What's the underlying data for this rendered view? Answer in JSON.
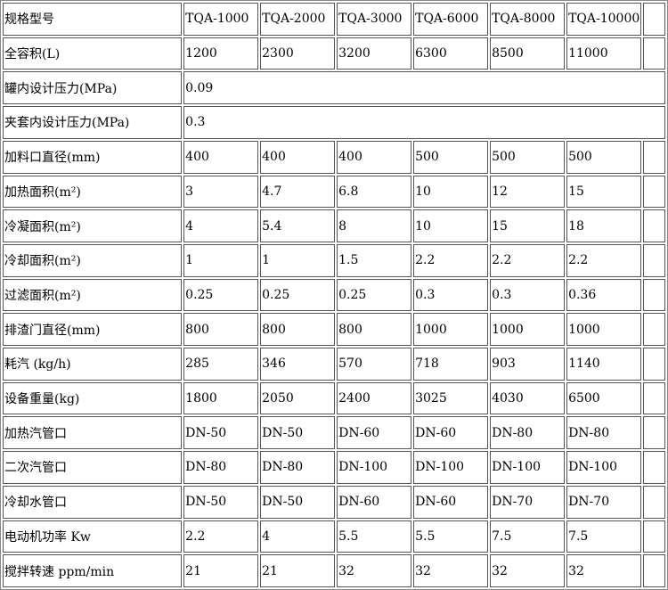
{
  "table": {
    "rows": [
      {
        "label": "规格型号",
        "cells": [
          "TQA-1000",
          "TQA-2000",
          "TQA-3000",
          "TQA-6000",
          "TQA-8000",
          "TQA-10000"
        ]
      },
      {
        "label": "全容积(L)",
        "cells": [
          "1200",
          "2300",
          "3200",
          "6300",
          "8500",
          "11000"
        ]
      },
      {
        "label": "罐内设计压力(MPa)",
        "cells": [
          "0.09"
        ]
      },
      {
        "label": "夹套内设计压力(MPa)",
        "cells": [
          "0.3"
        ]
      },
      {
        "label": "加料口直径(mm)",
        "cells": [
          "400",
          "400",
          "400",
          "500",
          "500",
          "500"
        ]
      },
      {
        "label": "加热面积(m²)",
        "cells": [
          "3",
          "4.7",
          "6.8",
          "10",
          "12",
          "15"
        ]
      },
      {
        "label": "冷凝面积(m²)",
        "cells": [
          "4",
          "5.4",
          "8",
          "10",
          "15",
          "18"
        ]
      },
      {
        "label": "冷却面积(m²)",
        "cells": [
          "1",
          "1",
          "1.5",
          "2.2",
          "2.2",
          "2.2"
        ]
      },
      {
        "label": "过滤面积(m²)",
        "cells": [
          "0.25",
          "0.25",
          "0.25",
          "0.3",
          "0.3",
          "0.36"
        ]
      },
      {
        "label": "排渣门直径(mm)",
        "cells": [
          "800",
          "800",
          "800",
          "1000",
          "1000",
          "1000"
        ]
      },
      {
        "label": "耗汽 (kg/h)",
        "cells": [
          "285",
          "346",
          "570",
          "718",
          "903",
          "1140"
        ]
      },
      {
        "label": "设备重量(kg)",
        "cells": [
          "1800",
          "2050",
          "2400",
          "3025",
          "4030",
          "6500"
        ]
      },
      {
        "label": "加热汽管口",
        "cells": [
          "DN-50",
          "DN-50",
          "DN-60",
          "DN-60",
          "DN-80",
          "DN-80"
        ]
      },
      {
        "label": "二次汽管口",
        "cells": [
          "DN-80",
          "DN-80",
          "DN-100",
          "DN-100",
          "DN-100",
          "DN-100"
        ]
      },
      {
        "label": "冷却水管口",
        "cells": [
          "DN-50",
          "DN-50",
          "DN-60",
          "DN-60",
          "DN-70",
          "DN-70"
        ]
      },
      {
        "label": "电动机功率 Kw",
        "cells": [
          "2.2",
          "4",
          "5.5",
          "5.5",
          "7.5",
          "7.5"
        ]
      },
      {
        "label": "搅拌转速 ppm/min",
        "cells": [
          "21",
          "21",
          "32",
          "32",
          "32",
          "32"
        ]
      }
    ]
  }
}
